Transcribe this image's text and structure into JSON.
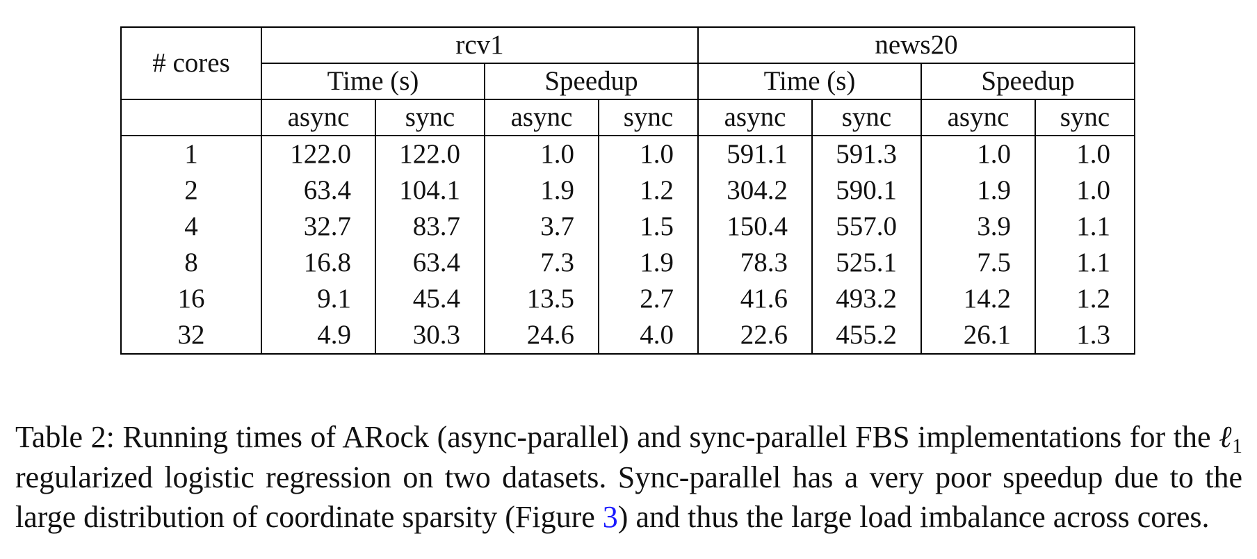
{
  "table": {
    "cores_header": "# cores",
    "datasets": [
      "rcv1",
      "news20"
    ],
    "metrics": [
      "Time (s)",
      "Speedup",
      "Time (s)",
      "Speedup"
    ],
    "modes": [
      "async",
      "sync",
      "async",
      "sync",
      "async",
      "sync",
      "async",
      "sync"
    ],
    "rows": [
      {
        "cores": "1",
        "values": [
          "122.0",
          "122.0",
          "1.0",
          "1.0",
          "591.1",
          "591.3",
          "1.0",
          "1.0"
        ]
      },
      {
        "cores": "2",
        "values": [
          "63.4",
          "104.1",
          "1.9",
          "1.2",
          "304.2",
          "590.1",
          "1.9",
          "1.0"
        ]
      },
      {
        "cores": "4",
        "values": [
          "32.7",
          "83.7",
          "3.7",
          "1.5",
          "150.4",
          "557.0",
          "3.9",
          "1.1"
        ]
      },
      {
        "cores": "8",
        "values": [
          "16.8",
          "63.4",
          "7.3",
          "1.9",
          "78.3",
          "525.1",
          "7.5",
          "1.1"
        ]
      },
      {
        "cores": "16",
        "values": [
          "9.1",
          "45.4",
          "13.5",
          "2.7",
          "41.6",
          "493.2",
          "14.2",
          "1.2"
        ]
      },
      {
        "cores": "32",
        "values": [
          "4.9",
          "30.3",
          "24.6",
          "4.0",
          "22.6",
          "455.2",
          "26.1",
          "1.3"
        ]
      }
    ]
  },
  "caption": {
    "part1": "Table 2: Running times of ARock (async-parallel) and sync-parallel FBS implementations for the ",
    "ell": "ℓ",
    "ell_sub": "1",
    "part2": " regularized logistic regression on two datasets. Sync-parallel has a very poor speedup due to the large distribution of coordinate sparsity (Figure ",
    "figure_ref": "3",
    "part3": ") and thus the large load imbalance across cores."
  }
}
